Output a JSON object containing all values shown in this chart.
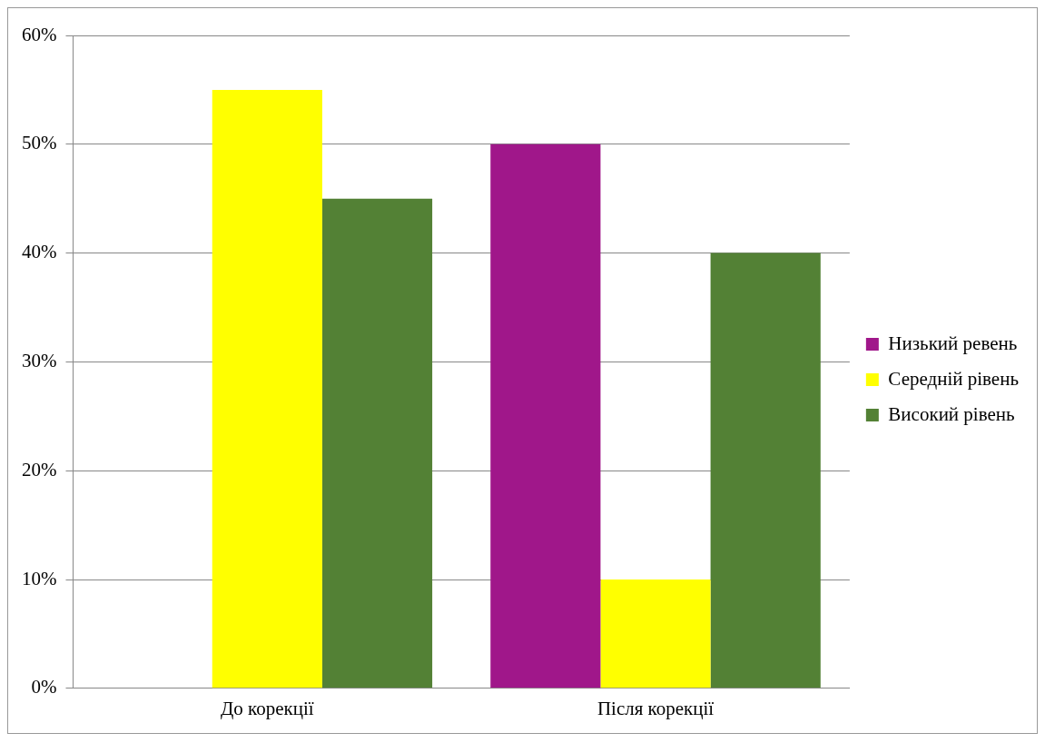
{
  "chart_data": {
    "type": "bar",
    "categories": [
      "До корекції",
      "Після корекції"
    ],
    "series": [
      {
        "name": "Низький ревень",
        "color": "#a0178a",
        "values": [
          0,
          50
        ]
      },
      {
        "name": "Середній рівень",
        "color": "#ffff00",
        "values": [
          55,
          10
        ]
      },
      {
        "name": "Високий рівень",
        "color": "#538135",
        "values": [
          45,
          40
        ]
      }
    ],
    "ylim": [
      0,
      60
    ],
    "yticks": [
      {
        "value": 0,
        "label": "0%"
      },
      {
        "value": 10,
        "label": "10%"
      },
      {
        "value": 20,
        "label": "20%"
      },
      {
        "value": 30,
        "label": "30%"
      },
      {
        "value": 40,
        "label": "40%"
      },
      {
        "value": 50,
        "label": "50%"
      },
      {
        "value": 60,
        "label": "60%"
      }
    ],
    "grid": "y",
    "legend": "right"
  }
}
